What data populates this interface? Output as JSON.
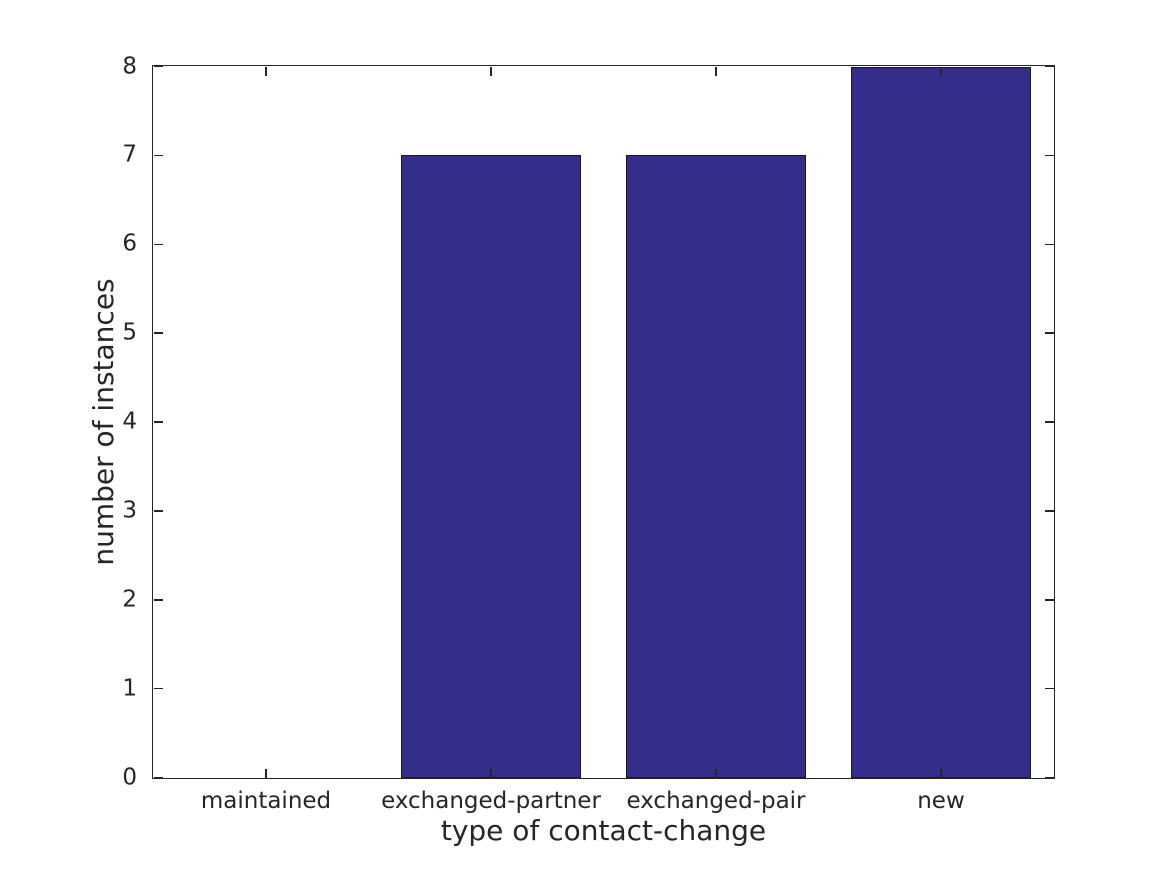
{
  "chart_data": {
    "type": "bar",
    "title": "",
    "xlabel": "type of contact-change",
    "ylabel": "number of instances",
    "categories": [
      "maintained",
      "exchanged-partner",
      "exchanged-pair",
      "new"
    ],
    "values": [
      0,
      7,
      7,
      8
    ],
    "ylim": [
      0,
      8
    ],
    "yticks": [
      0,
      1,
      2,
      3,
      4,
      5,
      6,
      7,
      8
    ],
    "bar_width_fraction": 0.8,
    "grid": false,
    "legend": "none",
    "tick_style": "inward-all-four-sides",
    "colors": {
      "bar_fill": "#342d8a",
      "bar_edge": "#1a1a1a",
      "axis": "#262626",
      "text": "#262626",
      "background": "#ffffff"
    }
  }
}
